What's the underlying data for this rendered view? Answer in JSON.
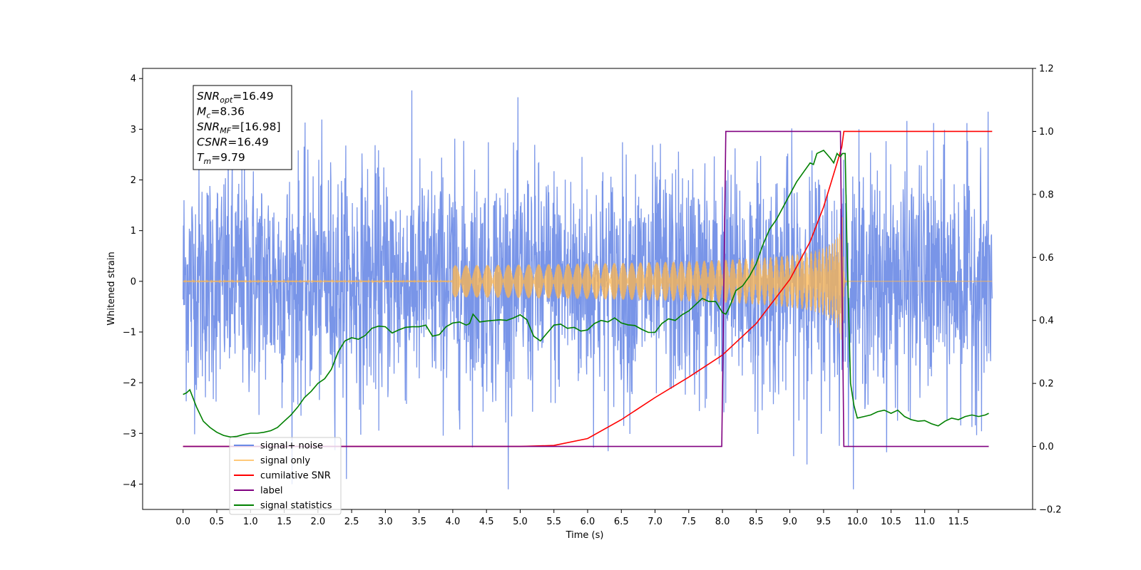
{
  "chart_data": {
    "type": "line",
    "xlabel": "Time (s)",
    "ylabel": "Whitened strain",
    "xlim": [
      -0.6,
      12.6
    ],
    "ylim": [
      -4.5,
      4.2
    ],
    "y2lim": [
      -0.2,
      1.2
    ],
    "x_ticks": [
      "0.0",
      "0.5",
      "1.0",
      "1.5",
      "2.0",
      "2.5",
      "3.0",
      "3.5",
      "4.0",
      "4.5",
      "5.0",
      "5.5",
      "6.0",
      "6.5",
      "7.0",
      "7.5",
      "8.0",
      "8.5",
      "9.0",
      "9.5",
      "10.0",
      "10.5",
      "11.0",
      "11.5"
    ],
    "y_ticks": [
      "4",
      "3",
      "2",
      "1",
      "0",
      "−1",
      "−2",
      "−3",
      "−4"
    ],
    "y2_ticks": [
      "1.2",
      "1.0",
      "0.8",
      "0.6",
      "0.4",
      "0.2",
      "0.0",
      "−0.2"
    ],
    "legend_position": "lower-left",
    "annotation": {
      "lines": [
        {
          "base": "SNR",
          "sub": "opt",
          "value": "=16.49"
        },
        {
          "base": "M",
          "sub": "c",
          "value": "=8.36"
        },
        {
          "base": "SNR",
          "sub": "MF",
          "value": "=[16.98]"
        },
        {
          "base": "CSNR",
          "sub": "",
          "value": "=16.49"
        },
        {
          "base": "T",
          "sub": "m",
          "value": "=9.79"
        }
      ]
    },
    "series": [
      {
        "name": "signal+ noise",
        "color": "#6a8ae6",
        "axis": "left",
        "kind": "noise",
        "x_range": [
          0.0,
          12.0
        ],
        "envelope": 1.15,
        "max_abs": 3.8
      },
      {
        "name": "signal only",
        "color": "#ffb74d",
        "axis": "left",
        "kind": "chirp",
        "x_range": [
          0.0,
          12.0
        ],
        "merger_time": 9.79,
        "peak_amplitude": 1.3
      },
      {
        "name": "cumilative SNR",
        "color": "#ff0000",
        "axis": "right",
        "x": [
          0.0,
          5.0,
          5.5,
          6.0,
          6.5,
          7.0,
          7.5,
          8.0,
          8.5,
          9.0,
          9.3,
          9.5,
          9.6,
          9.7,
          9.77,
          9.8,
          12.0
        ],
        "values": [
          0.0,
          0.0,
          0.003,
          0.025,
          0.085,
          0.155,
          0.22,
          0.29,
          0.39,
          0.53,
          0.65,
          0.76,
          0.83,
          0.9,
          0.95,
          1.0,
          1.0
        ]
      },
      {
        "name": "label",
        "color": "#800080",
        "axis": "right",
        "x": [
          0.0,
          7.99,
          8.05,
          9.75,
          9.8,
          11.95
        ],
        "values": [
          0.0,
          0.0,
          1.0,
          1.0,
          0.0,
          0.0
        ]
      },
      {
        "name": "signal statistics",
        "color": "#008000",
        "axis": "right",
        "x": [
          0.0,
          0.05,
          0.1,
          0.2,
          0.3,
          0.4,
          0.5,
          0.6,
          0.7,
          0.8,
          0.9,
          1.0,
          1.1,
          1.2,
          1.3,
          1.4,
          1.5,
          1.6,
          1.7,
          1.8,
          1.9,
          2.0,
          2.1,
          2.2,
          2.3,
          2.4,
          2.5,
          2.6,
          2.7,
          2.8,
          2.9,
          3.0,
          3.1,
          3.2,
          3.3,
          3.4,
          3.5,
          3.6,
          3.7,
          3.8,
          3.9,
          4.0,
          4.1,
          4.2,
          4.25,
          4.3,
          4.4,
          4.5,
          4.6,
          4.7,
          4.8,
          4.9,
          5.0,
          5.1,
          5.2,
          5.3,
          5.4,
          5.5,
          5.6,
          5.7,
          5.8,
          5.9,
          6.0,
          6.1,
          6.2,
          6.3,
          6.4,
          6.5,
          6.6,
          6.7,
          6.8,
          6.9,
          7.0,
          7.1,
          7.2,
          7.3,
          7.4,
          7.5,
          7.6,
          7.7,
          7.8,
          7.9,
          8.0,
          8.05,
          8.1,
          8.2,
          8.3,
          8.4,
          8.5,
          8.6,
          8.7,
          8.8,
          8.9,
          9.0,
          9.1,
          9.2,
          9.3,
          9.35,
          9.4,
          9.5,
          9.6,
          9.65,
          9.7,
          9.72,
          9.75,
          9.78,
          9.82,
          9.85,
          9.9,
          9.95,
          10.0,
          10.1,
          10.2,
          10.3,
          10.4,
          10.5,
          10.6,
          10.7,
          10.8,
          10.9,
          11.0,
          11.1,
          11.2,
          11.3,
          11.4,
          11.5,
          11.6,
          11.7,
          11.8,
          11.9,
          11.95
        ],
        "values": [
          0.165,
          0.17,
          0.18,
          0.125,
          0.08,
          0.06,
          0.045,
          0.035,
          0.03,
          0.032,
          0.038,
          0.042,
          0.042,
          0.045,
          0.05,
          0.06,
          0.08,
          0.1,
          0.125,
          0.155,
          0.175,
          0.2,
          0.215,
          0.245,
          0.3,
          0.335,
          0.345,
          0.34,
          0.352,
          0.375,
          0.382,
          0.38,
          0.36,
          0.37,
          0.378,
          0.38,
          0.38,
          0.385,
          0.35,
          0.355,
          0.38,
          0.392,
          0.395,
          0.385,
          0.39,
          0.42,
          0.395,
          0.398,
          0.4,
          0.402,
          0.4,
          0.408,
          0.418,
          0.402,
          0.35,
          0.335,
          0.36,
          0.385,
          0.388,
          0.375,
          0.378,
          0.366,
          0.37,
          0.39,
          0.4,
          0.395,
          0.408,
          0.392,
          0.386,
          0.384,
          0.372,
          0.362,
          0.362,
          0.39,
          0.405,
          0.4,
          0.418,
          0.43,
          0.45,
          0.47,
          0.46,
          0.46,
          0.425,
          0.42,
          0.44,
          0.495,
          0.51,
          0.54,
          0.58,
          0.64,
          0.69,
          0.72,
          0.76,
          0.8,
          0.84,
          0.87,
          0.9,
          0.895,
          0.93,
          0.94,
          0.915,
          0.9,
          0.93,
          0.925,
          0.92,
          0.93,
          0.93,
          0.6,
          0.2,
          0.13,
          0.09,
          0.095,
          0.1,
          0.11,
          0.115,
          0.105,
          0.115,
          0.095,
          0.085,
          0.08,
          0.082,
          0.072,
          0.065,
          0.08,
          0.09,
          0.085,
          0.095,
          0.1,
          0.095,
          0.1,
          0.105
        ]
      }
    ]
  }
}
